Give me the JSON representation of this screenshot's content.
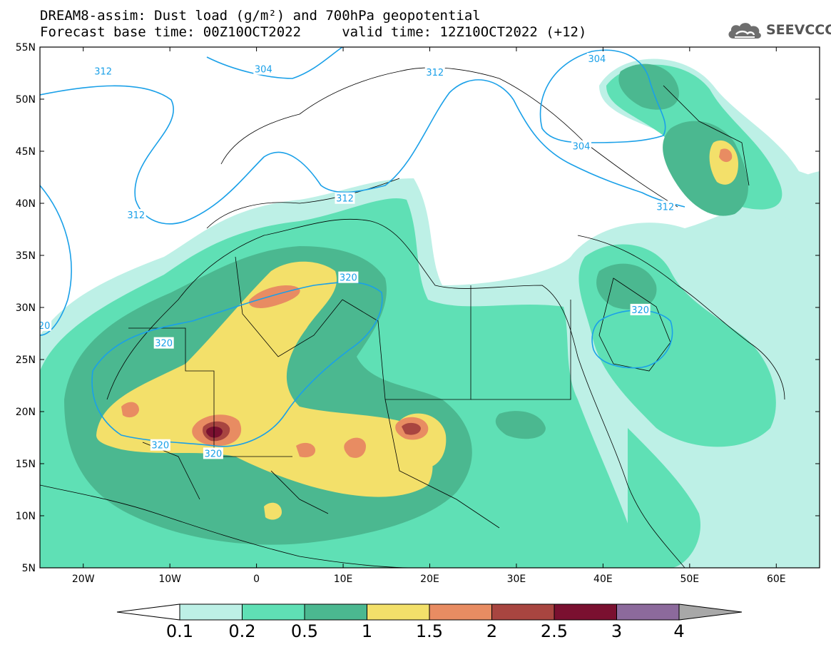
{
  "header": {
    "title_line1": "DREAM8-assim: Dust load (g/m²) and 700hPa geopotential",
    "title_line2": "Forecast base time: 00Z10OCT2022     valid time: 12Z10OCT2022 (+12)",
    "logo_text": "SEEVCCC",
    "logo_icon": "cloud-icon"
  },
  "map": {
    "extent": {
      "lon_min": -25,
      "lon_max": 65,
      "lat_min": 5,
      "lat_max": 55
    },
    "lat_ticks": [
      {
        "lat": 55,
        "label": "55N"
      },
      {
        "lat": 50,
        "label": "50N"
      },
      {
        "lat": 45,
        "label": "45N"
      },
      {
        "lat": 40,
        "label": "40N"
      },
      {
        "lat": 35,
        "label": "35N"
      },
      {
        "lat": 30,
        "label": "30N"
      },
      {
        "lat": 25,
        "label": "25N"
      },
      {
        "lat": 20,
        "label": "20N"
      },
      {
        "lat": 15,
        "label": "15N"
      },
      {
        "lat": 10,
        "label": "10N"
      },
      {
        "lat": 5,
        "label": "5N"
      }
    ],
    "lon_ticks": [
      {
        "lon": -20,
        "label": "20W"
      },
      {
        "lon": -10,
        "label": "10W"
      },
      {
        "lon": 0,
        "label": "0"
      },
      {
        "lon": 10,
        "label": "10E"
      },
      {
        "lon": 20,
        "label": "20E"
      },
      {
        "lon": 30,
        "label": "30E"
      },
      {
        "lon": 40,
        "label": "40E"
      },
      {
        "lon": 50,
        "label": "50E"
      },
      {
        "lon": 60,
        "label": "60E"
      }
    ],
    "contour_color": "#1aa0e8",
    "contour_labels": [
      {
        "text": "312",
        "lon": -17.7,
        "lat": 52.7
      },
      {
        "text": "304",
        "lon": 0.8,
        "lat": 52.9
      },
      {
        "text": "312",
        "lon": 20.6,
        "lat": 52.6
      },
      {
        "text": "304",
        "lon": 39.3,
        "lat": 53.9
      },
      {
        "text": "304",
        "lon": 37.5,
        "lat": 45.5
      },
      {
        "text": "312",
        "lon": 10.2,
        "lat": 40.5
      },
      {
        "text": "312",
        "lon": -13.9,
        "lat": 38.9
      },
      {
        "text": "312",
        "lon": 47.2,
        "lat": 39.7
      },
      {
        "text": "20",
        "lon": -24.5,
        "lat": 28.3
      },
      {
        "text": "320",
        "lon": 10.6,
        "lat": 32.9
      },
      {
        "text": "320",
        "lon": -10.7,
        "lat": 26.6
      },
      {
        "text": "320",
        "lon": 44.3,
        "lat": 29.8
      },
      {
        "text": "320",
        "lon": -11.1,
        "lat": 16.8
      },
      {
        "text": "320",
        "lon": -5.0,
        "lat": 16.0
      }
    ]
  },
  "colorbar": {
    "levels": [
      "0.1",
      "0.2",
      "0.5",
      "1",
      "1.5",
      "2",
      "2.5",
      "3",
      "4"
    ],
    "colors": [
      "#bdf0e6",
      "#5fe0b5",
      "#4bb890",
      "#f3e06a",
      "#e88c62",
      "#a84540",
      "#7a1030",
      "#8c6a9c"
    ],
    "under_color": "#ffffff",
    "over_color": "#a8a8a8"
  }
}
